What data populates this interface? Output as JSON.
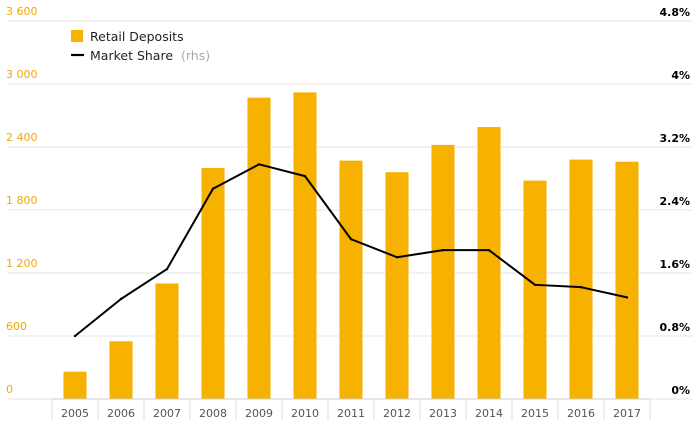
{
  "chart_data": {
    "type": "bar",
    "title": "",
    "xlabel": "",
    "ylabel": "",
    "categories": [
      "2005",
      "2006",
      "2007",
      "2008",
      "2009",
      "2010",
      "2011",
      "2012",
      "2013",
      "2014",
      "2015",
      "2016",
      "2017"
    ],
    "series": [
      {
        "name": "Retail Deposits",
        "type": "bar",
        "axis": "left",
        "values": [
          260,
          550,
          1100,
          2200,
          2870,
          2920,
          2270,
          2160,
          2420,
          2590,
          2080,
          2280,
          2260
        ]
      },
      {
        "name": "Market Share",
        "type": "line",
        "axis": "right",
        "values": [
          0.8,
          1.27,
          1.65,
          2.67,
          2.98,
          2.83,
          2.03,
          1.8,
          1.89,
          1.89,
          1.45,
          1.42,
          1.29
        ]
      }
    ],
    "ylim": [
      0,
      3600
    ],
    "y_ticks": [
      0,
      600,
      1200,
      1800,
      2400,
      3000,
      3600
    ],
    "y_tick_labels": [
      "0",
      "600",
      "1 200",
      "1 800",
      "2 400",
      "3 000",
      "3 600"
    ],
    "y2lim": [
      0,
      4.8
    ],
    "y2_ticks": [
      0,
      0.8,
      1.6,
      2.4,
      3.2,
      4,
      4.8
    ],
    "y2_tick_labels": [
      "0%",
      "0.8%",
      "1.6%",
      "2.4%",
      "3.2%",
      "4%",
      "4.8%"
    ],
    "legend": {
      "placement": "top-left",
      "items": [
        {
          "label": "Retail Deposits",
          "suffix": ""
        },
        {
          "label": "Market Share",
          "suffix": "(rhs)"
        }
      ]
    },
    "grid": true
  },
  "colors": {
    "bar": "#F7B100",
    "line": "#000000",
    "left_axis_text": "#F0A800",
    "right_axis_text": "#000000",
    "x_axis_text": "#555555",
    "grid": "#E6E6E6",
    "legend_text": "#222222",
    "legend_suffix": "#AAAAAA"
  }
}
